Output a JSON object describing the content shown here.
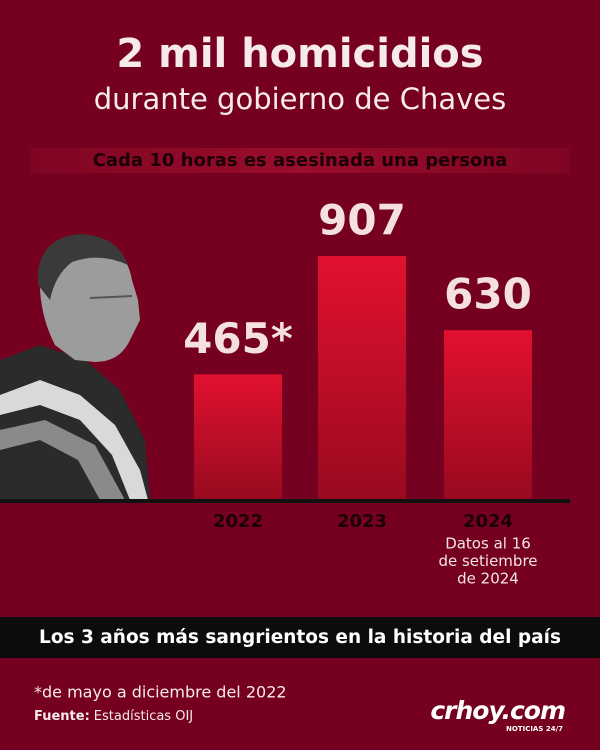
{
  "chart_data": {
    "type": "bar",
    "title": "2 mil homicidios",
    "subtitle": "durante gobierno de Chaves",
    "banner": "Cada 10 horas es asesinada una persona",
    "categories": [
      "2022",
      "2023",
      "2024"
    ],
    "values": [
      465,
      907,
      630
    ],
    "value_labels": [
      "465*",
      "907",
      "630"
    ],
    "color": "#d80c2c",
    "annotation": [
      "Datos al 16",
      "de setiembre",
      "de 2024"
    ],
    "bottom_banner": "Los 3 años más sangrientos en la historia del país",
    "footnote": "*de mayo a diciembre del 2022",
    "source_label": "Fuente:",
    "source": "Estadísticas OIJ",
    "logo": "crhoy.com",
    "logo_tagline": "NOTICIAS 24/7"
  }
}
